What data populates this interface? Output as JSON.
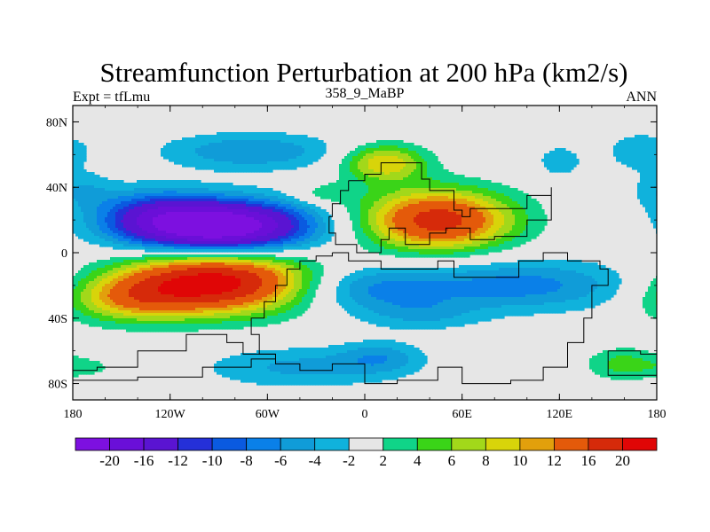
{
  "chart_data": {
    "type": "heatmap",
    "title": "Streamfunction Perturbation at 200 hPa (km2/s)",
    "left_label": "Expt = tfLmu",
    "center_label": "358_9_MaBP",
    "right_label": "ANN",
    "x_ticks": [
      {
        "value": -180,
        "label": "180"
      },
      {
        "value": -120,
        "label": "120W"
      },
      {
        "value": -60,
        "label": "60W"
      },
      {
        "value": 0,
        "label": "0"
      },
      {
        "value": 60,
        "label": "60E"
      },
      {
        "value": 120,
        "label": "120E"
      },
      {
        "value": 180,
        "label": "180"
      }
    ],
    "y_ticks": [
      {
        "value": 80,
        "label": "80N"
      },
      {
        "value": 40,
        "label": "40N"
      },
      {
        "value": 0,
        "label": "0"
      },
      {
        "value": -40,
        "label": "40S"
      },
      {
        "value": -80,
        "label": "80S"
      }
    ],
    "xlim": [
      -180,
      180
    ],
    "ylim": [
      -90,
      90
    ],
    "background_color": "#e6e6e6",
    "colorbar": {
      "levels": [
        "-20",
        "-16",
        "-12",
        "-10",
        "-8",
        "-6",
        "-4",
        "-2",
        "2",
        "4",
        "6",
        "8",
        "10",
        "12",
        "16",
        "20"
      ],
      "colors": [
        "#7d10e0",
        "#6a0fd8",
        "#5a14d2",
        "#2530d8",
        "#0a5ae0",
        "#0a80e8",
        "#109cd8",
        "#10b2dc",
        "#e6e6e6",
        "#10d488",
        "#3ad418",
        "#a2d81a",
        "#d8d40a",
        "#e2a00c",
        "#e45a0a",
        "#d62a0a",
        "#e00606"
      ]
    },
    "anomalies": [
      {
        "lon": -90,
        "lat": 16,
        "slon": 38,
        "slat": 11,
        "amp": -26
      },
      {
        "lon": -132,
        "lat": 24,
        "slon": 24,
        "slat": 11,
        "amp": -7
      },
      {
        "lon": -70,
        "lat": 62,
        "slon": 38,
        "slat": 8,
        "amp": -6
      },
      {
        "lon": -92,
        "lat": -18,
        "slon": 40,
        "slat": 13,
        "amp": 22
      },
      {
        "lon": -145,
        "lat": -28,
        "slon": 28,
        "slat": 10,
        "amp": 9
      },
      {
        "lon": 45,
        "lat": 20,
        "slon": 32,
        "slat": 13,
        "amp": 18
      },
      {
        "lon": 12,
        "lat": 55,
        "slon": 18,
        "slat": 8,
        "amp": 10
      },
      {
        "lon": -25,
        "lat": 36,
        "slon": 14,
        "slat": 5,
        "amp": 3.2
      },
      {
        "lon": 0,
        "lat": -22,
        "slon": 32,
        "slat": 10,
        "amp": -6
      },
      {
        "lon": 95,
        "lat": -20,
        "slon": 50,
        "slat": 11,
        "amp": -7
      },
      {
        "lon": 35,
        "lat": -38,
        "slon": 26,
        "slat": 7,
        "amp": -3.5
      },
      {
        "lon": -40,
        "lat": -70,
        "slon": 42,
        "slat": 9,
        "amp": -4.5
      },
      {
        "lon": 10,
        "lat": -64,
        "slon": 18,
        "slat": 7,
        "amp": -4.5
      },
      {
        "lon": 120,
        "lat": 56,
        "slon": 10,
        "slat": 7,
        "amp": -3.5
      },
      {
        "lon": 170,
        "lat": 62,
        "slon": 16,
        "slat": 9,
        "amp": -3.5
      },
      {
        "lon": 185,
        "lat": 38,
        "slon": 14,
        "slat": 8,
        "amp": -3.5
      },
      {
        "lon": 160,
        "lat": -68,
        "slon": 16,
        "slat": 7,
        "amp": 5
      },
      {
        "lon": -170,
        "lat": -70,
        "slon": 12,
        "slat": 4,
        "amp": 2.5
      }
    ],
    "land": [
      {
        "lon": -10,
        "lat": 44
      },
      {
        "lon": 0,
        "lat": 48
      },
      {
        "lon": 10,
        "lat": 55
      },
      {
        "lon": 20,
        "lat": 55
      },
      {
        "lon": 35,
        "lat": 45
      },
      {
        "lon": 40,
        "lat": 38
      },
      {
        "lon": 55,
        "lat": 26
      },
      {
        "lon": 60,
        "lat": 22
      },
      {
        "lon": 65,
        "lat": 27
      },
      {
        "lon": 80,
        "lat": 27
      },
      {
        "lon": 100,
        "lat": 35
      },
      {
        "lon": 115,
        "lat": 40
      },
      {
        "lon": 115,
        "lat": 20
      },
      {
        "lon": 100,
        "lat": 10
      },
      {
        "lon": 80,
        "lat": 8
      },
      {
        "lon": 65,
        "lat": 15
      },
      {
        "lon": 50,
        "lat": 12
      },
      {
        "lon": 40,
        "lat": 5
      },
      {
        "lon": 25,
        "lat": 15
      },
      {
        "lon": 15,
        "lat": 8
      },
      {
        "lon": 10,
        "lat": 0
      },
      {
        "lon": -5,
        "lat": 5
      },
      {
        "lon": -18,
        "lat": 12
      },
      {
        "lon": -22,
        "lat": 22
      },
      {
        "lon": -20,
        "lat": 30
      },
      {
        "lon": -15,
        "lat": 38
      },
      {
        "lon": -10,
        "lat": 44
      },
      {
        "lon": -20,
        "lat": 0
      },
      {
        "lon": -10,
        "lat": -5
      },
      {
        "lon": 10,
        "lat": -10
      },
      {
        "lon": 30,
        "lat": -10
      },
      {
        "lon": 45,
        "lat": -5
      },
      {
        "lon": 55,
        "lat": -15
      },
      {
        "lon": 75,
        "lat": -15
      },
      {
        "lon": 95,
        "lat": -5
      },
      {
        "lon": 110,
        "lat": 0
      },
      {
        "lon": 125,
        "lat": -5
      },
      {
        "lon": 145,
        "lat": -10
      },
      {
        "lon": 150,
        "lat": -20
      },
      {
        "lon": 140,
        "lat": -40
      },
      {
        "lon": 135,
        "lat": -55
      },
      {
        "lon": 125,
        "lat": -70
      },
      {
        "lon": 110,
        "lat": -78
      },
      {
        "lon": 90,
        "lat": -80
      },
      {
        "lon": 60,
        "lat": -70
      },
      {
        "lon": 45,
        "lat": -78
      },
      {
        "lon": 20,
        "lat": -80
      },
      {
        "lon": 0,
        "lat": -68
      },
      {
        "lon": -20,
        "lat": -72
      },
      {
        "lon": -40,
        "lat": -68
      },
      {
        "lon": -55,
        "lat": -62
      },
      {
        "lon": -65,
        "lat": -50
      },
      {
        "lon": -70,
        "lat": -40
      },
      {
        "lon": -62,
        "lat": -30
      },
      {
        "lon": -55,
        "lat": -20
      },
      {
        "lon": -48,
        "lat": -10
      },
      {
        "lon": -40,
        "lat": -5
      },
      {
        "lon": -30,
        "lat": -2
      },
      {
        "lon": -20,
        "lat": 0
      },
      {
        "lon": -55,
        "lat": -62
      },
      {
        "lon": -75,
        "lat": -55
      },
      {
        "lon": -85,
        "lat": -50
      },
      {
        "lon": -110,
        "lat": -60
      },
      {
        "lon": -140,
        "lat": -70
      },
      {
        "lon": -165,
        "lat": -72
      },
      {
        "lon": -180,
        "lat": -72
      },
      {
        "lon": -180,
        "lat": -78
      },
      {
        "lon": -140,
        "lat": -76
      },
      {
        "lon": -100,
        "lat": -70
      },
      {
        "lon": -70,
        "lat": -65
      },
      {
        "lon": -55,
        "lat": -62
      },
      {
        "lon": 150,
        "lat": -60
      },
      {
        "lon": 170,
        "lat": -62
      },
      {
        "lon": 180,
        "lat": -68
      },
      {
        "lon": 180,
        "lat": -75
      },
      {
        "lon": 160,
        "lat": -75
      },
      {
        "lon": 150,
        "lat": -70
      },
      {
        "lon": 150,
        "lat": -60
      }
    ]
  }
}
